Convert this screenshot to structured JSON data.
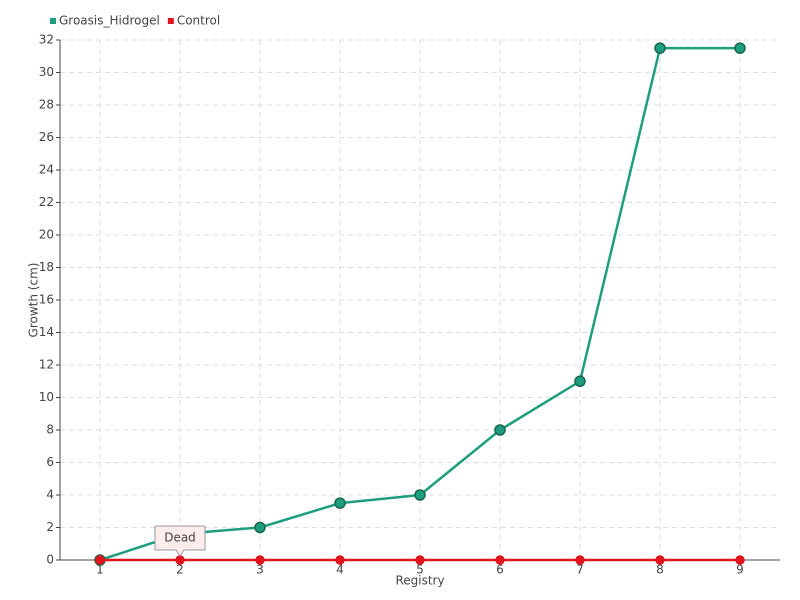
{
  "chart_data": {
    "type": "line",
    "x_label": "Registry",
    "y_label": "Growth (cm)",
    "categories": [
      "1",
      "2",
      "3",
      "4",
      "5",
      "6",
      "7",
      "8",
      "9"
    ],
    "series": [
      {
        "name": "Groasis_Hidrogel",
        "color": "#1e9e7e",
        "values": [
          0,
          1.6,
          2,
          3.5,
          4,
          8,
          11,
          31.5,
          31.5
        ]
      },
      {
        "name": "Control",
        "color": "#e0141e",
        "values": [
          0,
          0,
          0,
          0,
          0,
          0,
          0,
          0,
          0
        ]
      }
    ],
    "ylim": [
      0,
      32
    ],
    "yticks": [
      0,
      2,
      4,
      6,
      8,
      10,
      12,
      14,
      16,
      18,
      20,
      22,
      24,
      26,
      28,
      30,
      32
    ],
    "grid": true,
    "legend": "top-left",
    "annotation": {
      "text": "Dead",
      "series": "Control",
      "category": "2"
    }
  }
}
